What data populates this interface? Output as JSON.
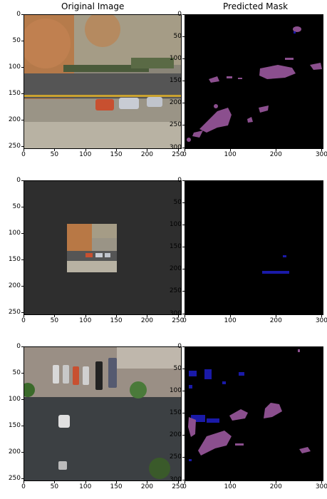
{
  "titles": {
    "left": "Original Image",
    "right": "Predicted Mask"
  },
  "panels": {
    "left_ticks_x": [
      "0",
      "50",
      "100",
      "150",
      "200",
      "250"
    ],
    "left_ticks_y": [
      "0",
      "50",
      "100",
      "150",
      "200",
      "250"
    ],
    "right_ticks_x": [
      "0",
      "100",
      "200",
      "300"
    ],
    "right_ticks_y": [
      "0",
      "50",
      "100",
      "150",
      "200",
      "250",
      "300"
    ],
    "left_range": [
      0,
      256
    ],
    "right_range": [
      0,
      304
    ]
  },
  "colors": {
    "mask_bg": "#000000",
    "class_a": "#8b4f8e",
    "class_b": "#1a1aa8",
    "padding": "#2e2e2e"
  }
}
